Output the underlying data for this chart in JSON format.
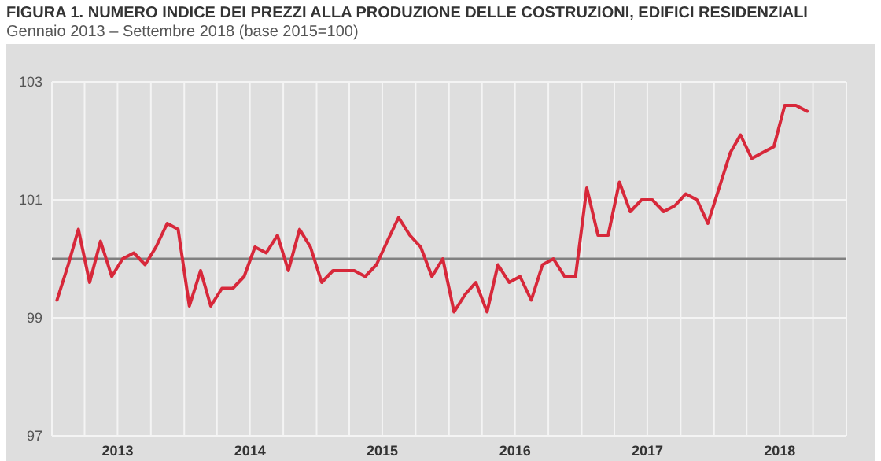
{
  "chart_data": {
    "type": "line",
    "title": "FIGURA 1. NUMERO INDICE DEI PREZZI ALLA PRODUZIONE DELLE COSTRUZIONI, EDIFICI RESIDENZIALI",
    "subtitle": "Gennaio 2013 – Settembre 2018 (base 2015=100)",
    "x": [
      "2013-01-15",
      "2013-02-15",
      "2013-03-15",
      "2013-04-15",
      "2013-05-15",
      "2013-06-15",
      "2013-07-15",
      "2013-08-15",
      "2013-09-15",
      "2013-10-15",
      "2013-11-15",
      "2013-12-15",
      "2014-01-15",
      "2014-02-15",
      "2014-03-15",
      "2014-04-15",
      "2014-05-15",
      "2014-06-15",
      "2014-07-15",
      "2014-08-15",
      "2014-09-15",
      "2014-10-15",
      "2014-11-15",
      "2014-12-15",
      "2015-01-15",
      "2015-02-15",
      "2015-03-15",
      "2015-04-15",
      "2015-05-15",
      "2015-06-15",
      "2015-07-15",
      "2015-08-15",
      "2015-09-15",
      "2015-10-15",
      "2015-11-15",
      "2015-12-15",
      "2016-01-15",
      "2016-02-15",
      "2016-03-15",
      "2016-04-15",
      "2016-05-15",
      "2016-06-15",
      "2016-07-15",
      "2016-08-15",
      "2016-09-15",
      "2016-10-15",
      "2016-11-15",
      "2016-12-15",
      "2017-01-15",
      "2017-02-15",
      "2017-03-15",
      "2017-04-15",
      "2017-05-15",
      "2017-06-15",
      "2017-07-15",
      "2017-08-15",
      "2017-09-15",
      "2017-10-15",
      "2017-11-15",
      "2017-12-15",
      "2018-01-15",
      "2018-02-15",
      "2018-03-15",
      "2018-04-15",
      "2018-05-15",
      "2018-06-15",
      "2018-07-15",
      "2018-08-15",
      "2018-09-15"
    ],
    "series": [
      {
        "color": "#d7283a",
        "values": [
          99.3,
          99.9,
          100.5,
          99.6,
          100.3,
          99.7,
          100.0,
          100.1,
          99.9,
          100.2,
          100.6,
          100.5,
          99.2,
          99.8,
          99.2,
          99.5,
          99.5,
          99.7,
          100.2,
          100.1,
          100.4,
          99.8,
          100.5,
          100.2,
          99.6,
          99.8,
          99.8,
          99.8,
          99.7,
          99.9,
          100.3,
          100.7,
          100.4,
          100.2,
          99.7,
          100.0,
          99.1,
          99.4,
          99.6,
          99.1,
          99.9,
          99.6,
          99.7,
          99.3,
          99.9,
          100.0,
          99.7,
          99.7,
          101.2,
          100.4,
          100.4,
          101.3,
          100.8,
          101.0,
          101.0,
          100.8,
          100.9,
          101.1,
          101.0,
          100.6,
          101.2,
          101.8,
          102.1,
          101.7,
          101.8,
          101.9,
          102.6,
          102.6,
          102.5
        ]
      }
    ],
    "xlim": [
      "2013-01-01",
      "2019-01-01"
    ],
    "xticks": [
      {
        "value": "2013-01-01",
        "label": null
      },
      {
        "value": "2013-04-01",
        "label": null
      },
      {
        "value": "2013-07-01",
        "label": "2013"
      },
      {
        "value": "2013-10-01",
        "label": null
      },
      {
        "value": "2014-01-01",
        "label": null
      },
      {
        "value": "2014-04-01",
        "label": null
      },
      {
        "value": "2014-07-01",
        "label": "2014"
      },
      {
        "value": "2014-10-01",
        "label": null
      },
      {
        "value": "2015-01-01",
        "label": null
      },
      {
        "value": "2015-04-01",
        "label": null
      },
      {
        "value": "2015-07-01",
        "label": "2015"
      },
      {
        "value": "2015-10-01",
        "label": null
      },
      {
        "value": "2016-01-01",
        "label": null
      },
      {
        "value": "2016-04-01",
        "label": null
      },
      {
        "value": "2016-07-01",
        "label": "2016"
      },
      {
        "value": "2016-10-01",
        "label": null
      },
      {
        "value": "2017-01-01",
        "label": null
      },
      {
        "value": "2017-04-01",
        "label": null
      },
      {
        "value": "2017-07-01",
        "label": "2017"
      },
      {
        "value": "2017-10-01",
        "label": null
      },
      {
        "value": "2018-01-01",
        "label": null
      },
      {
        "value": "2018-04-01",
        "label": null
      },
      {
        "value": "2018-07-01",
        "label": "2018"
      },
      {
        "value": "2018-10-01",
        "label": null
      },
      {
        "value": "2019-01-01",
        "label": null
      }
    ],
    "ylim": [
      97,
      103
    ],
    "yticks": [
      97,
      99,
      101,
      103
    ],
    "grid": true,
    "ref_lines": [
      {
        "axis": "y",
        "value": 100,
        "color": "#808080"
      }
    ]
  }
}
